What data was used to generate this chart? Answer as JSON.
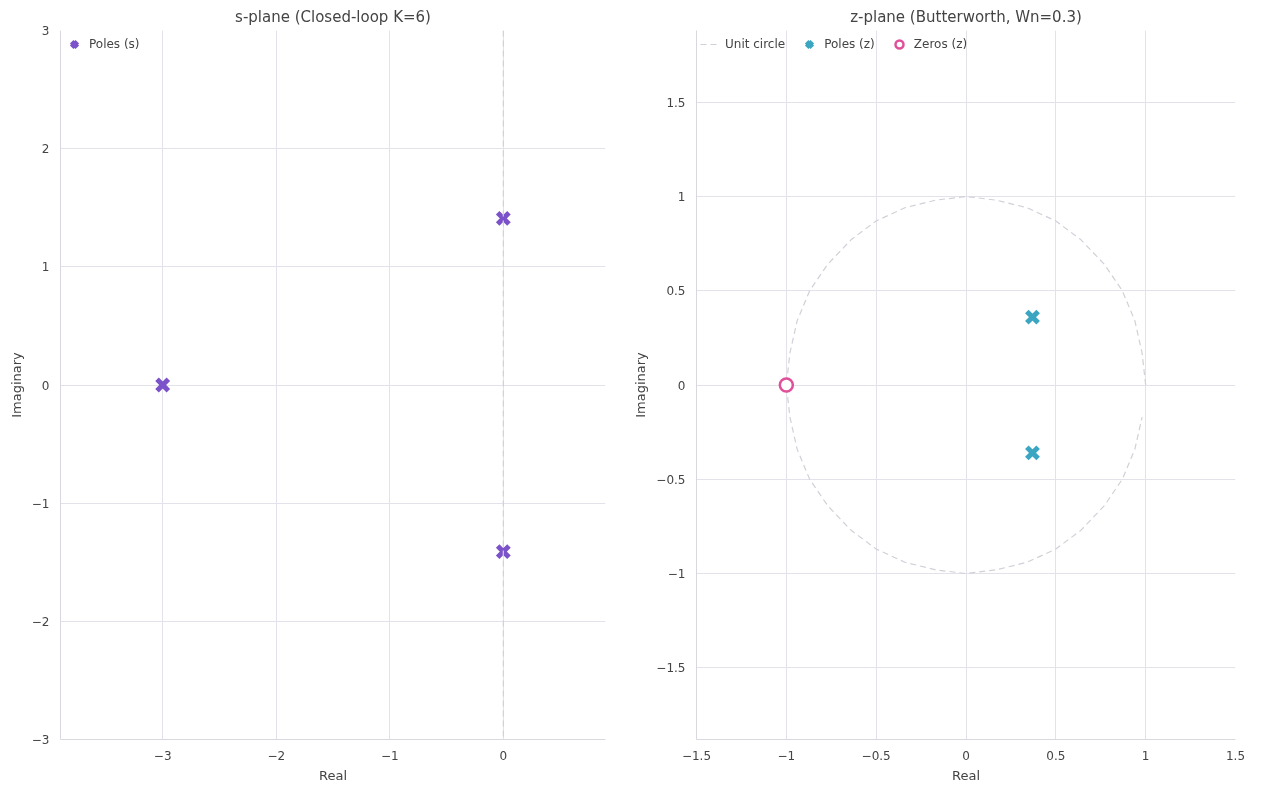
{
  "chart_data": [
    {
      "type": "scatter",
      "title": "s-plane (Closed-loop K=6)",
      "xlabel": "Real",
      "ylabel": "Imaginary",
      "legend": "top left",
      "grid": true,
      "xlim": [
        -3.9,
        0.9
      ],
      "xticks": [
        {
          "value": -3,
          "label": "−3"
        },
        {
          "value": -2,
          "label": "−2"
        },
        {
          "value": -1,
          "label": "−1"
        },
        0
      ],
      "ylim": [
        -3,
        3
      ],
      "yticks": [
        {
          "value": -3,
          "label": "−3"
        },
        {
          "value": -2,
          "label": "−2"
        },
        {
          "value": -1,
          "label": "−1"
        },
        0,
        1,
        2,
        3
      ],
      "ref_lines": [
        {
          "axis": "x",
          "value": 0,
          "color": "#d0d0d8",
          "line_style": "dashed"
        }
      ],
      "series": [
        {
          "name": "Poles (s)",
          "marker": "cross",
          "color": "#7b52c9",
          "x": [
            -3,
            0,
            0
          ],
          "values": [
            0,
            1.41,
            -1.41
          ]
        }
      ]
    },
    {
      "type": "scatter",
      "title": "z-plane (Butterworth, Wn=0.3)",
      "xlabel": "Real",
      "ylabel": "Imaginary",
      "legend": "top left",
      "grid": true,
      "xlim": [
        -1.5,
        1.5
      ],
      "xticks": [
        {
          "value": -1.5,
          "label": "−1.5"
        },
        {
          "value": -1,
          "label": "−1"
        },
        {
          "value": -0.5,
          "label": "−0.5"
        },
        0,
        0.5,
        1,
        1.5
      ],
      "ylim": [
        -1.88,
        1.88
      ],
      "yticks": [
        {
          "value": -1.5,
          "label": "−1.5"
        },
        {
          "value": -1,
          "label": "−1"
        },
        {
          "value": -0.5,
          "label": "−0.5"
        },
        0,
        0.5,
        1,
        1.5
      ],
      "series": [
        {
          "name": "Unit circle",
          "type": "line",
          "line_style": "dashed",
          "color": "#d0d0d8",
          "x": [
            1,
            0.98,
            0.94,
            0.87,
            0.77,
            0.64,
            0.5,
            0.34,
            0.17,
            0,
            -0.17,
            -0.34,
            -0.5,
            -0.64,
            -0.77,
            -0.87,
            -0.94,
            -0.98,
            -1,
            -0.98,
            -0.94,
            -0.87,
            -0.77,
            -0.64,
            -0.5,
            -0.34,
            -0.17,
            0,
            0.17,
            0.34,
            0.5,
            0.64,
            0.77,
            0.87,
            0.94,
            0.98
          ],
          "values": [
            0,
            0.17,
            0.34,
            0.5,
            0.64,
            0.77,
            0.87,
            0.94,
            0.98,
            1,
            0.98,
            0.94,
            0.87,
            0.77,
            0.64,
            0.5,
            0.34,
            0.17,
            0,
            -0.17,
            -0.34,
            -0.5,
            -0.64,
            -0.77,
            -0.87,
            -0.94,
            -0.98,
            -1,
            -0.98,
            -0.94,
            -0.87,
            -0.77,
            -0.64,
            -0.5,
            -0.34,
            -0.17
          ]
        },
        {
          "name": "Poles (z)",
          "marker": "cross",
          "color": "#3aa6c2",
          "x": [
            0.37,
            0.37
          ],
          "values": [
            0.36,
            -0.36
          ]
        },
        {
          "name": "Zeros (z)",
          "marker": "circle",
          "color": "#e0509a",
          "x": [
            -1
          ],
          "values": [
            0
          ]
        }
      ]
    }
  ]
}
